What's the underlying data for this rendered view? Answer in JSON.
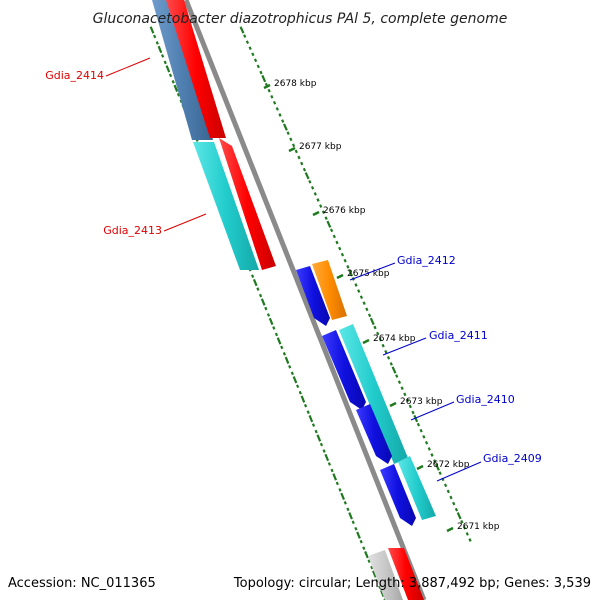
{
  "title": "Gluconacetobacter diazotrophicus PAl 5, complete genome",
  "accession": "Accession: NC_011365",
  "summary": "Topology: circular; Length: 3,887,492 bp; Genes: 3,539",
  "ticks": [
    "2678 kbp",
    "2677 kbp",
    "2676 kbp",
    "2675 kbp",
    "2674 kbp",
    "2673 kbp",
    "2672 kbp",
    "2671 kbp"
  ],
  "genes": {
    "left": [
      "Gdia_2414",
      "Gdia_2413"
    ],
    "right": [
      "Gdia_2412",
      "Gdia_2411",
      "Gdia_2410",
      "Gdia_2409"
    ]
  },
  "colors": {
    "backbone": "#8a8a8a",
    "tick": "#1f7a1f",
    "red": "#ff0000",
    "steelblue": "#4f7fb0",
    "cyan": "#22cccc",
    "blue": "#1010e0",
    "orange": "#ff8c00",
    "lightgray": "#c8c8c8",
    "label_left": "#dd0000",
    "label_right": "#0000cc"
  }
}
